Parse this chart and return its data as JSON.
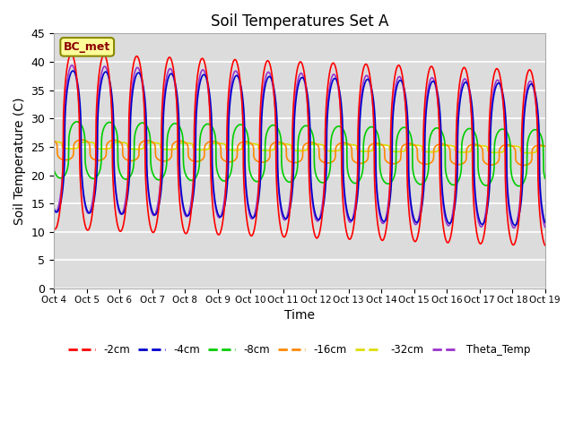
{
  "title": "Soil Temperatures Set A",
  "xlabel": "Time",
  "ylabel": "Soil Temperature (C)",
  "ylim": [
    0,
    45
  ],
  "yticks": [
    0,
    5,
    10,
    15,
    20,
    25,
    30,
    35,
    40,
    45
  ],
  "annotation": "BC_met",
  "bg_color": "#dcdcdc",
  "legend_entries": [
    "-2cm",
    "-4cm",
    "-8cm",
    "-16cm",
    "-32cm",
    "Theta_Temp"
  ],
  "line_colors": [
    "#ff0000",
    "#0000cc",
    "#00cc00",
    "#ff8800",
    "#dddd00",
    "#9933cc"
  ],
  "xtick_labels": [
    "Oct 4",
    "Oct 5",
    "Oct 6",
    "Oct 7",
    "Oct 8",
    "Oct 9",
    "Oct 10",
    "Oct 11",
    "Oct 12",
    "Oct 13",
    "Oct 14",
    "Oct 15",
    "Oct 16",
    "Oct 17",
    "Oct 18",
    "Oct 19"
  ],
  "period": 1.0,
  "n_days": 15,
  "n_pts": 3600
}
